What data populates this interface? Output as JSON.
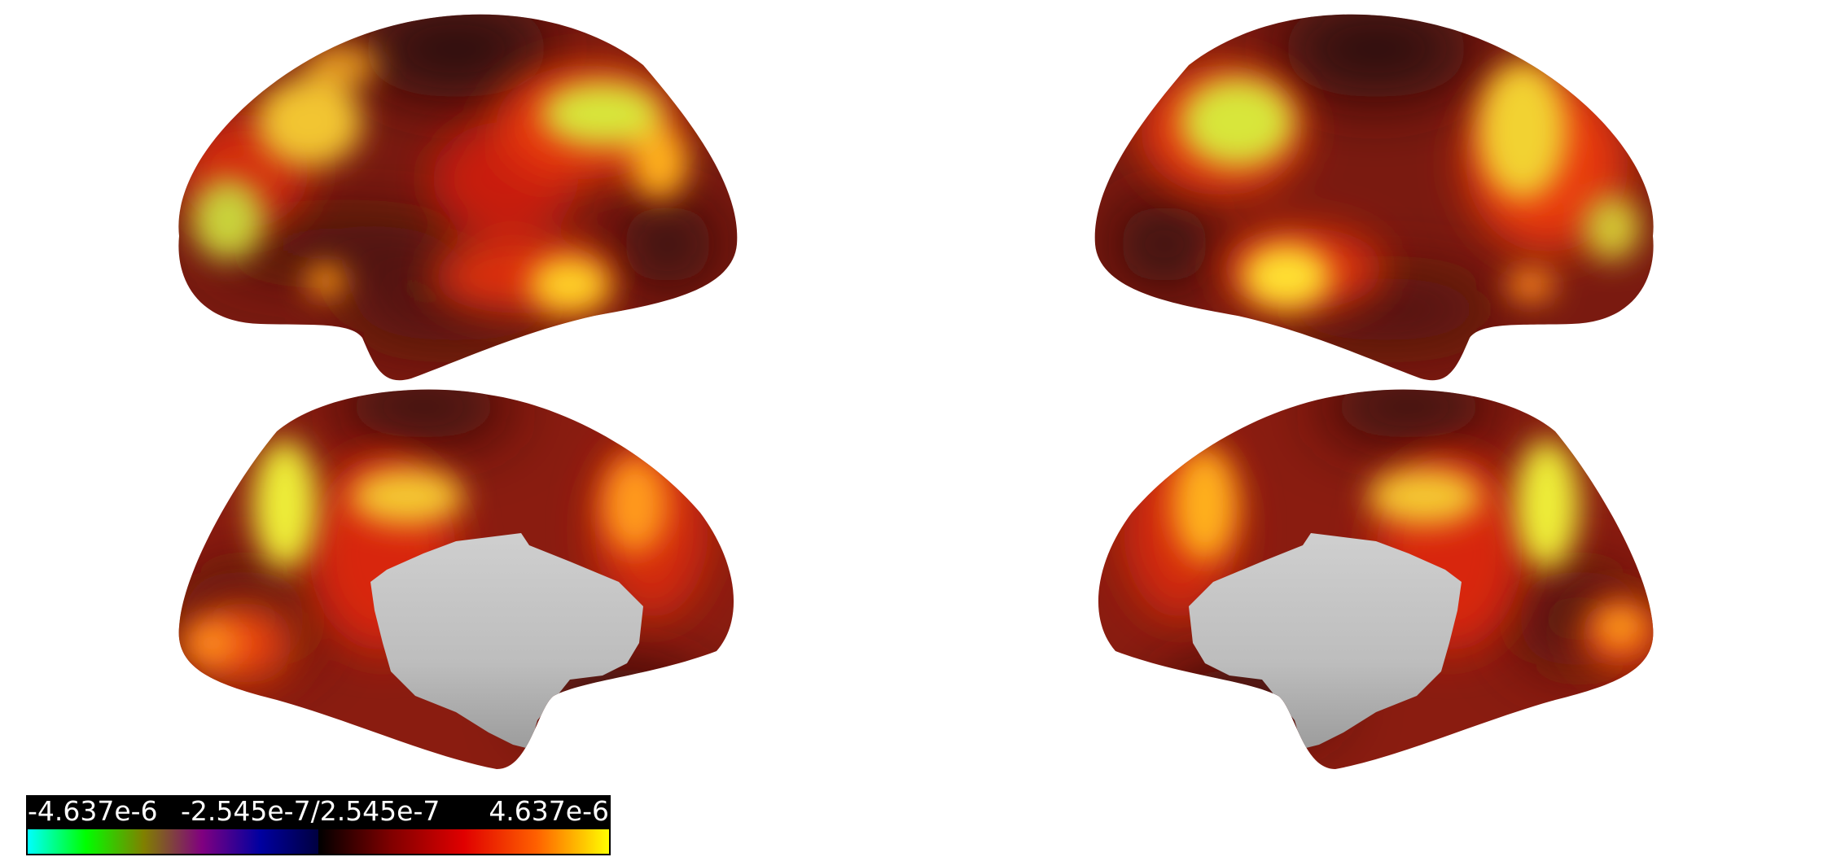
{
  "view": "cortical surface map, left and right hemispheres, lateral and medial views",
  "colorbar": {
    "min_label": "-4.637e-6",
    "mid_label": "-2.545e-7/2.545e-7",
    "max_label": "4.637e-6",
    "negative_colors": [
      "#00ffff",
      "#00ff00",
      "#808000",
      "#800080",
      "#0000a0",
      "#000040"
    ],
    "positive_colors": [
      "#000000",
      "#800000",
      "#e00000",
      "#ff6000",
      "#ffff00"
    ]
  },
  "palette": {
    "dark": "#3a1410",
    "mid": "#b81d0e",
    "hot": "#ff5a12",
    "peak": "#e6f238",
    "medial_wall": "#c2c2c2"
  }
}
